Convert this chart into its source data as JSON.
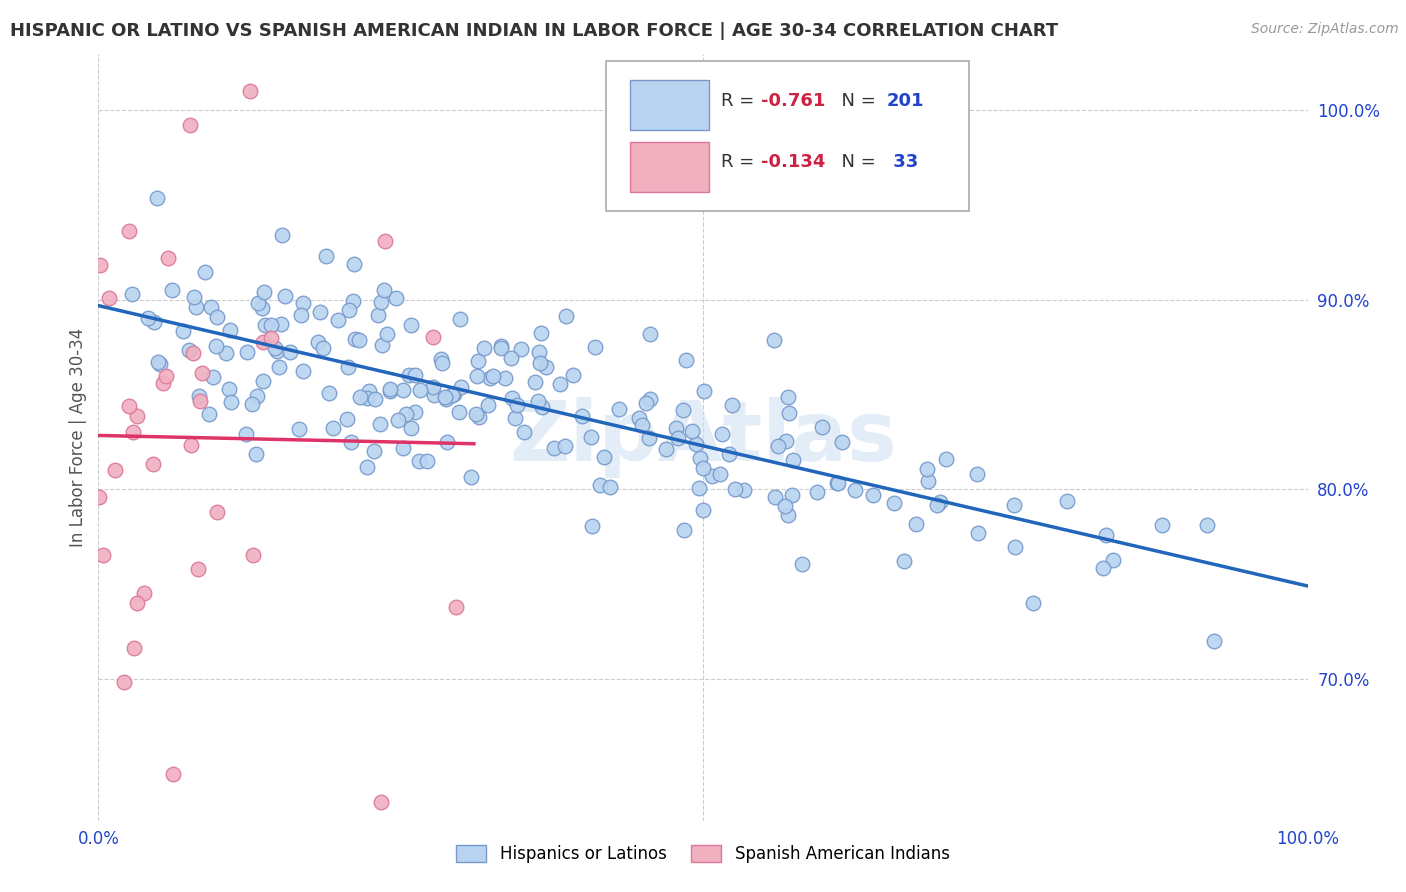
{
  "title": "HISPANIC OR LATINO VS SPANISH AMERICAN INDIAN IN LABOR FORCE | AGE 30-34 CORRELATION CHART",
  "source": "Source: ZipAtlas.com",
  "ylabel": "In Labor Force | Age 30-34",
  "xlim": [
    0.0,
    1.0
  ],
  "ylim": [
    0.625,
    1.03
  ],
  "yticks": [
    0.7,
    0.8,
    0.9,
    1.0
  ],
  "ytick_labels": [
    "70.0%",
    "80.0%",
    "90.0%",
    "100.0%"
  ],
  "blue_R": -0.761,
  "blue_N": 201,
  "pink_R": -0.134,
  "pink_N": 33,
  "blue_color": "#b8d4f0",
  "pink_color": "#f0b0c0",
  "blue_line_color": "#2266bb",
  "pink_line_color": "#dd3366",
  "blue_edge_color": "#7799cc",
  "pink_edge_color": "#dd7799",
  "watermark": "ZipAtlas",
  "watermark_color": "#c8ddf0",
  "background_color": "#ffffff",
  "grid_color": "#cccccc",
  "title_color": "#333333",
  "axis_label_color": "#555555",
  "legend_r_color": "#cc2244",
  "legend_n_color": "#2244cc",
  "blue_seed": 42,
  "pink_seed": 123
}
